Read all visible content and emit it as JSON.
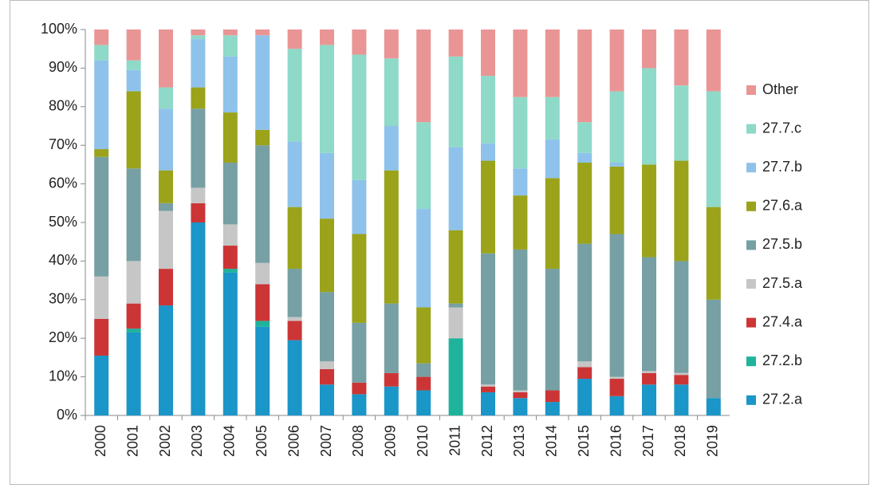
{
  "chart_data": {
    "type": "stacked_bar",
    "categories": [
      "2000",
      "2001",
      "2002",
      "2003",
      "2004",
      "2005",
      "2006",
      "2007",
      "2008",
      "2009",
      "2010",
      "2011",
      "2012",
      "2013",
      "2014",
      "2015",
      "2016",
      "2017",
      "2018",
      "2019"
    ],
    "series": [
      {
        "name": "27.2.a",
        "color": "#1a96c8",
        "values": [
          15.5,
          21.5,
          28.5,
          50,
          37,
          23,
          19.5,
          8,
          5.5,
          7.5,
          6.5,
          0,
          6,
          4.5,
          3.5,
          9.5,
          5,
          8,
          8,
          4.5
        ]
      },
      {
        "name": "27.2.b",
        "color": "#1fb39b",
        "values": [
          0,
          1,
          0,
          0,
          1,
          1.5,
          0,
          0,
          0,
          0,
          0,
          20,
          0,
          0,
          0,
          0,
          0,
          0,
          0,
          0
        ]
      },
      {
        "name": "27.4.a",
        "color": "#cc3535",
        "values": [
          9.5,
          6.5,
          9.5,
          5,
          6,
          9.5,
          5,
          4,
          3,
          3.5,
          3.5,
          0,
          1.5,
          1.5,
          3,
          3,
          4.5,
          3,
          2.5,
          0
        ]
      },
      {
        "name": "27.5.a",
        "color": "#c6c6c6",
        "values": [
          11,
          11,
          15,
          4,
          5.5,
          5.5,
          1,
          2,
          0,
          0,
          0,
          8,
          0.5,
          0.5,
          0,
          1.5,
          0.5,
          0.5,
          0.5,
          0
        ]
      },
      {
        "name": "27.5.b",
        "color": "#76a0a3",
        "values": [
          31,
          24,
          2,
          20.5,
          16,
          30.5,
          12.5,
          18,
          15.5,
          18,
          3.5,
          1,
          34,
          36.5,
          31.5,
          30.5,
          37,
          29.5,
          29,
          25.5
        ]
      },
      {
        "name": "27.6.a",
        "color": "#9aa31a",
        "values": [
          2,
          20,
          8.5,
          5.5,
          13,
          4,
          16,
          19,
          23,
          34.5,
          14.5,
          19,
          24,
          14,
          23.5,
          21,
          17.5,
          24,
          26,
          24
        ]
      },
      {
        "name": "27.7.b",
        "color": "#8ec2ea",
        "values": [
          23,
          5.5,
          16,
          12.5,
          14.5,
          24.5,
          17,
          17,
          14,
          11.5,
          25.5,
          21.5,
          4.5,
          7,
          10,
          2.5,
          1,
          0,
          0,
          0
        ]
      },
      {
        "name": "27.7.c",
        "color": "#8fd9c8",
        "values": [
          4,
          2.5,
          5.5,
          1,
          5.5,
          0,
          24,
          28,
          32.5,
          17.5,
          22.5,
          23.5,
          17.5,
          18.5,
          11,
          8,
          18.5,
          25,
          19.5,
          30
        ]
      },
      {
        "name": "Other",
        "color": "#ea9595",
        "values": [
          4,
          8,
          15,
          1.5,
          1.5,
          1.5,
          5,
          4,
          6.5,
          7.5,
          24,
          7,
          12,
          17.5,
          17.5,
          24,
          16,
          10,
          14.5,
          16
        ]
      }
    ],
    "ylim": [
      0,
      100
    ],
    "yticks": [
      {
        "value": 0,
        "label": "0%"
      },
      {
        "value": 10,
        "label": "10%"
      },
      {
        "value": 20,
        "label": "20%"
      },
      {
        "value": 30,
        "label": "30%"
      },
      {
        "value": 40,
        "label": "40%"
      },
      {
        "value": 50,
        "label": "50%"
      },
      {
        "value": 60,
        "label": "60%"
      },
      {
        "value": 70,
        "label": "70%"
      },
      {
        "value": 80,
        "label": "80%"
      },
      {
        "value": 90,
        "label": "90%"
      },
      {
        "value": 100,
        "label": "100%"
      }
    ],
    "legend": "right"
  }
}
